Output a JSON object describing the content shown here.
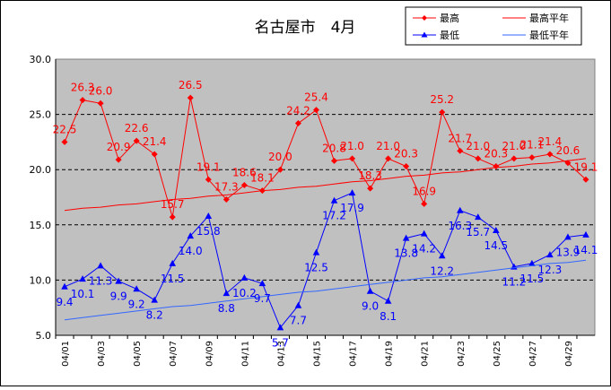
{
  "chart_data": {
    "type": "line",
    "title": "名古屋市　4月",
    "xlabel": "",
    "ylabel": "",
    "ylim": [
      5.0,
      30.0
    ],
    "yticks": [
      "5.0",
      "10.0",
      "15.0",
      "20.0",
      "25.0",
      "30.0"
    ],
    "x": [
      "04/01",
      "04/02",
      "04/03",
      "04/04",
      "04/05",
      "04/06",
      "04/07",
      "04/08",
      "04/09",
      "04/10",
      "04/11",
      "04/12",
      "04/13",
      "04/14",
      "04/15",
      "04/16",
      "04/17",
      "04/18",
      "04/19",
      "04/20",
      "04/21",
      "04/22",
      "04/23",
      "04/24",
      "04/25",
      "04/26",
      "04/27",
      "04/28",
      "04/29",
      "04/30"
    ],
    "xtick_labels": [
      "04/01",
      "04/03",
      "04/05",
      "04/07",
      "04/09",
      "04/11",
      "04/13",
      "04/15",
      "04/17",
      "04/19",
      "04/21",
      "04/23",
      "04/25",
      "04/27",
      "04/29"
    ],
    "series": [
      {
        "name": "最高",
        "color": "#ff0000",
        "marker": "diamond",
        "values": [
          22.5,
          26.3,
          26.0,
          20.9,
          22.6,
          21.4,
          15.7,
          26.5,
          19.1,
          17.3,
          18.6,
          18.1,
          20.0,
          24.2,
          25.4,
          20.8,
          21.0,
          18.3,
          21.0,
          20.3,
          16.9,
          25.2,
          21.7,
          21.0,
          20.3,
          21.0,
          21.1,
          21.4,
          20.6,
          19.1
        ]
      },
      {
        "name": "最低",
        "color": "#0000ff",
        "marker": "triangle",
        "values": [
          9.4,
          10.1,
          11.3,
          9.9,
          9.2,
          8.2,
          11.5,
          14.0,
          15.8,
          8.8,
          10.2,
          9.7,
          5.7,
          7.7,
          12.5,
          17.2,
          17.9,
          9.0,
          8.1,
          13.8,
          14.2,
          12.2,
          16.3,
          15.7,
          14.5,
          11.2,
          11.5,
          12.3,
          13.9,
          14.1
        ]
      },
      {
        "name": "最高平年",
        "color": "#ff0000",
        "marker": "none",
        "values": [
          16.3,
          16.5,
          16.6,
          16.8,
          16.9,
          17.1,
          17.3,
          17.4,
          17.6,
          17.7,
          17.9,
          18.1,
          18.2,
          18.4,
          18.5,
          18.7,
          18.9,
          19.0,
          19.2,
          19.4,
          19.5,
          19.7,
          19.8,
          20.0,
          20.2,
          20.3,
          20.5,
          20.6,
          20.8,
          21.0
        ]
      },
      {
        "name": "最低平年",
        "color": "#3366ff",
        "marker": "none",
        "values": [
          6.4,
          6.6,
          6.8,
          7.0,
          7.2,
          7.4,
          7.6,
          7.7,
          7.9,
          8.1,
          8.3,
          8.5,
          8.7,
          8.9,
          9.0,
          9.2,
          9.4,
          9.6,
          9.8,
          10.0,
          10.2,
          10.3,
          10.5,
          10.7,
          10.9,
          11.1,
          11.3,
          11.5,
          11.6,
          11.8
        ]
      }
    ],
    "grid": "dashed horizontal",
    "plot_background": "#c0c0c0",
    "legend_position": "top-right"
  }
}
